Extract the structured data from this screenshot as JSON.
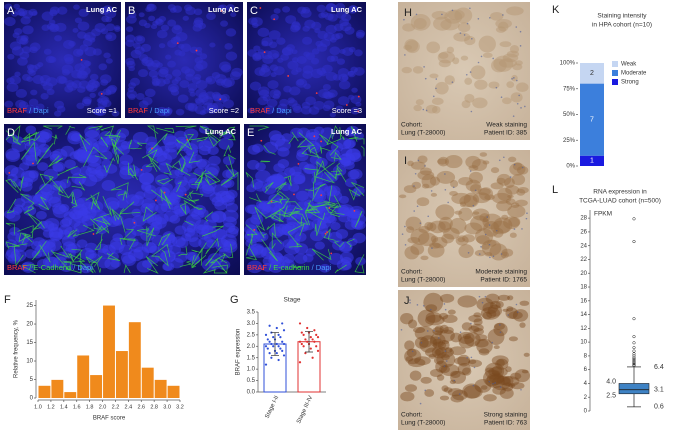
{
  "micrographs": [
    {
      "letter": "A",
      "tissue": "Lung AC",
      "stain": [
        {
          "text": "BRAF",
          "color": "#ff3b3b"
        },
        {
          "text": " / Dapi",
          "color": "#4a9cff"
        }
      ],
      "score": "Score =1"
    },
    {
      "letter": "B",
      "tissue": "Lung AC",
      "stain": [
        {
          "text": "BRAF",
          "color": "#ff3b3b"
        },
        {
          "text": " / Dapi",
          "color": "#4a9cff"
        }
      ],
      "score": "Score =2"
    },
    {
      "letter": "C",
      "tissue": "Lung AC",
      "stain": [
        {
          "text": "BRAF",
          "color": "#ff3b3b"
        },
        {
          "text": " / Dapi",
          "color": "#4a9cff"
        }
      ],
      "score": "Score =3"
    },
    {
      "letter": "D",
      "tissue": "Lung AC",
      "stain": [
        {
          "text": "BRAF",
          "color": "#ff3b3b"
        },
        {
          "text": " / E-Cadherin",
          "color": "#3ddc3d"
        },
        {
          "text": " / Dapi",
          "color": "#4a9cff"
        }
      ]
    },
    {
      "letter": "E",
      "tissue": "Lung AC",
      "stain": [
        {
          "text": "BRAF",
          "color": "#ff3b3b"
        },
        {
          "text": " / E-cadherin",
          "color": "#3ddc3d"
        },
        {
          "text": " / Dapi",
          "color": "#4a9cff"
        }
      ]
    }
  ],
  "ihc": [
    {
      "letter": "H",
      "cohort": "Cohort:",
      "tissue": "Lung (T-28000)",
      "staining": "Weak staining",
      "patient": "Patient ID: 385"
    },
    {
      "letter": "I",
      "cohort": "Cohort:",
      "tissue": "Lung (T-28000)",
      "staining": "Moderate staining",
      "patient": "Patient ID: 1765"
    },
    {
      "letter": "J",
      "cohort": "Cohort:",
      "tissue": "Lung (T-28000)",
      "staining": "Strong staining",
      "patient": "Patient ID: 763"
    }
  ],
  "chart_data": [
    {
      "type": "histogram",
      "letter": "F",
      "xlabel": "BRAF score",
      "ylabel": "Relative frequency, %",
      "color": "#f08a1c",
      "bins": [
        1.0,
        1.2,
        1.4,
        1.6,
        1.8,
        2.0,
        2.2,
        2.4,
        2.6,
        2.8,
        3.0,
        3.2
      ],
      "values": [
        3.3,
        4.9,
        1.6,
        11.5,
        6.2,
        25,
        12.7,
        20.5,
        8.2,
        4.9,
        3.3
      ],
      "xlim": [
        1.0,
        3.2
      ],
      "xticks": [
        {
          "value": 1.0,
          "label": "1.0"
        },
        {
          "value": 1.2,
          "label": "1.2"
        },
        {
          "value": 1.4,
          "label": "1.4"
        },
        {
          "value": 1.6,
          "label": "1.6"
        },
        {
          "value": 1.8,
          "label": "1.8"
        },
        {
          "value": 2.0,
          "label": "2.0"
        },
        {
          "value": 2.2,
          "label": "2.2"
        },
        {
          "value": 2.4,
          "label": "2.4"
        },
        {
          "value": 2.6,
          "label": "2.6"
        },
        {
          "value": 2.8,
          "label": "2.8"
        },
        {
          "value": 3.0,
          "label": "3.0"
        },
        {
          "value": 3.2,
          "label": "3.2"
        }
      ],
      "ylim": [
        0,
        26.5
      ],
      "yticks": [
        0,
        5,
        10,
        15,
        20,
        25
      ]
    },
    {
      "type": "dot_bar",
      "letter": "G",
      "title": "Stage",
      "ylabel": "BRAF expression",
      "categories": [
        "Stage I-II",
        "Stage III-IV"
      ],
      "colors": [
        "#2f4fd8",
        "#e03030"
      ],
      "values": [
        2.1,
        2.2
      ],
      "errors": [
        0.5,
        0.45
      ],
      "points": [
        [
          1.2,
          1.4,
          1.5,
          1.6,
          1.7,
          1.7,
          1.8,
          1.8,
          1.9,
          1.9,
          2.0,
          2.0,
          2.0,
          2.1,
          2.1,
          2.1,
          2.2,
          2.2,
          2.3,
          2.3,
          2.4,
          2.4,
          2.5,
          2.5,
          2.6,
          2.7,
          2.8,
          2.9,
          3.0
        ],
        [
          1.3,
          1.5,
          1.7,
          1.8,
          1.9,
          2.0,
          2.0,
          2.1,
          2.1,
          2.2,
          2.2,
          2.2,
          2.3,
          2.3,
          2.4,
          2.4,
          2.5,
          2.5,
          2.6,
          2.6,
          2.7,
          2.8,
          3.0
        ]
      ],
      "ylim": [
        0,
        3.5
      ],
      "yticks": [
        {
          "value": 0,
          "label": "0.0"
        },
        {
          "value": 0.5,
          "label": "0.5"
        },
        {
          "value": 1,
          "label": "1.0"
        },
        {
          "value": 1.5,
          "label": "1.5"
        },
        {
          "value": 2,
          "label": "2.0"
        },
        {
          "value": 2.5,
          "label": "2.5"
        },
        {
          "value": 3,
          "label": "3.0"
        },
        {
          "value": 3.5,
          "label": "3.5"
        }
      ]
    },
    {
      "type": "stacked_bar",
      "letter": "K",
      "title": [
        "Staining intensity",
        "in HPA cohort (n=10)"
      ],
      "series": [
        {
          "name": "Strong",
          "color": "#1a1ae0",
          "values": [
            10
          ],
          "value_labels": [
            "1"
          ]
        },
        {
          "name": "Moderate",
          "color": "#3c7fdc",
          "values": [
            70
          ],
          "value_labels": [
            "7"
          ]
        },
        {
          "name": "Weak",
          "color": "#c5d6f2",
          "values": [
            20
          ],
          "value_labels": [
            "2"
          ]
        }
      ],
      "ylim": [
        0,
        100
      ],
      "yticks": [
        {
          "value": 0,
          "label": "0%"
        },
        {
          "value": 25,
          "label": "25%"
        },
        {
          "value": 50,
          "label": "50%"
        },
        {
          "value": 75,
          "label": "75%"
        },
        {
          "value": 100,
          "label": "100%"
        }
      ]
    },
    {
      "type": "box",
      "letter": "L",
      "title": [
        "RNA expression in",
        "TCGA-LUAD cohort (n=500)"
      ],
      "ylabel": "FPKM",
      "color": "#3e82c4",
      "values": [
        0.6,
        2.5,
        3.1,
        4.0,
        6.4
      ],
      "value_labels": [
        "0.6",
        "2.5",
        "3.1",
        "4.0",
        "6.4"
      ],
      "outliers": [
        27.9,
        24.6,
        13.4,
        10.8,
        9.9,
        9.2,
        8.7,
        8.3,
        8.0,
        7.7,
        7.5,
        7.3,
        7.1,
        6.9,
        6.7,
        6.6
      ],
      "ylim": [
        0,
        28.6
      ],
      "yticks": [
        0,
        2,
        4,
        6,
        8,
        10,
        12,
        14,
        16,
        18,
        20,
        22,
        24,
        26,
        28
      ]
    }
  ]
}
